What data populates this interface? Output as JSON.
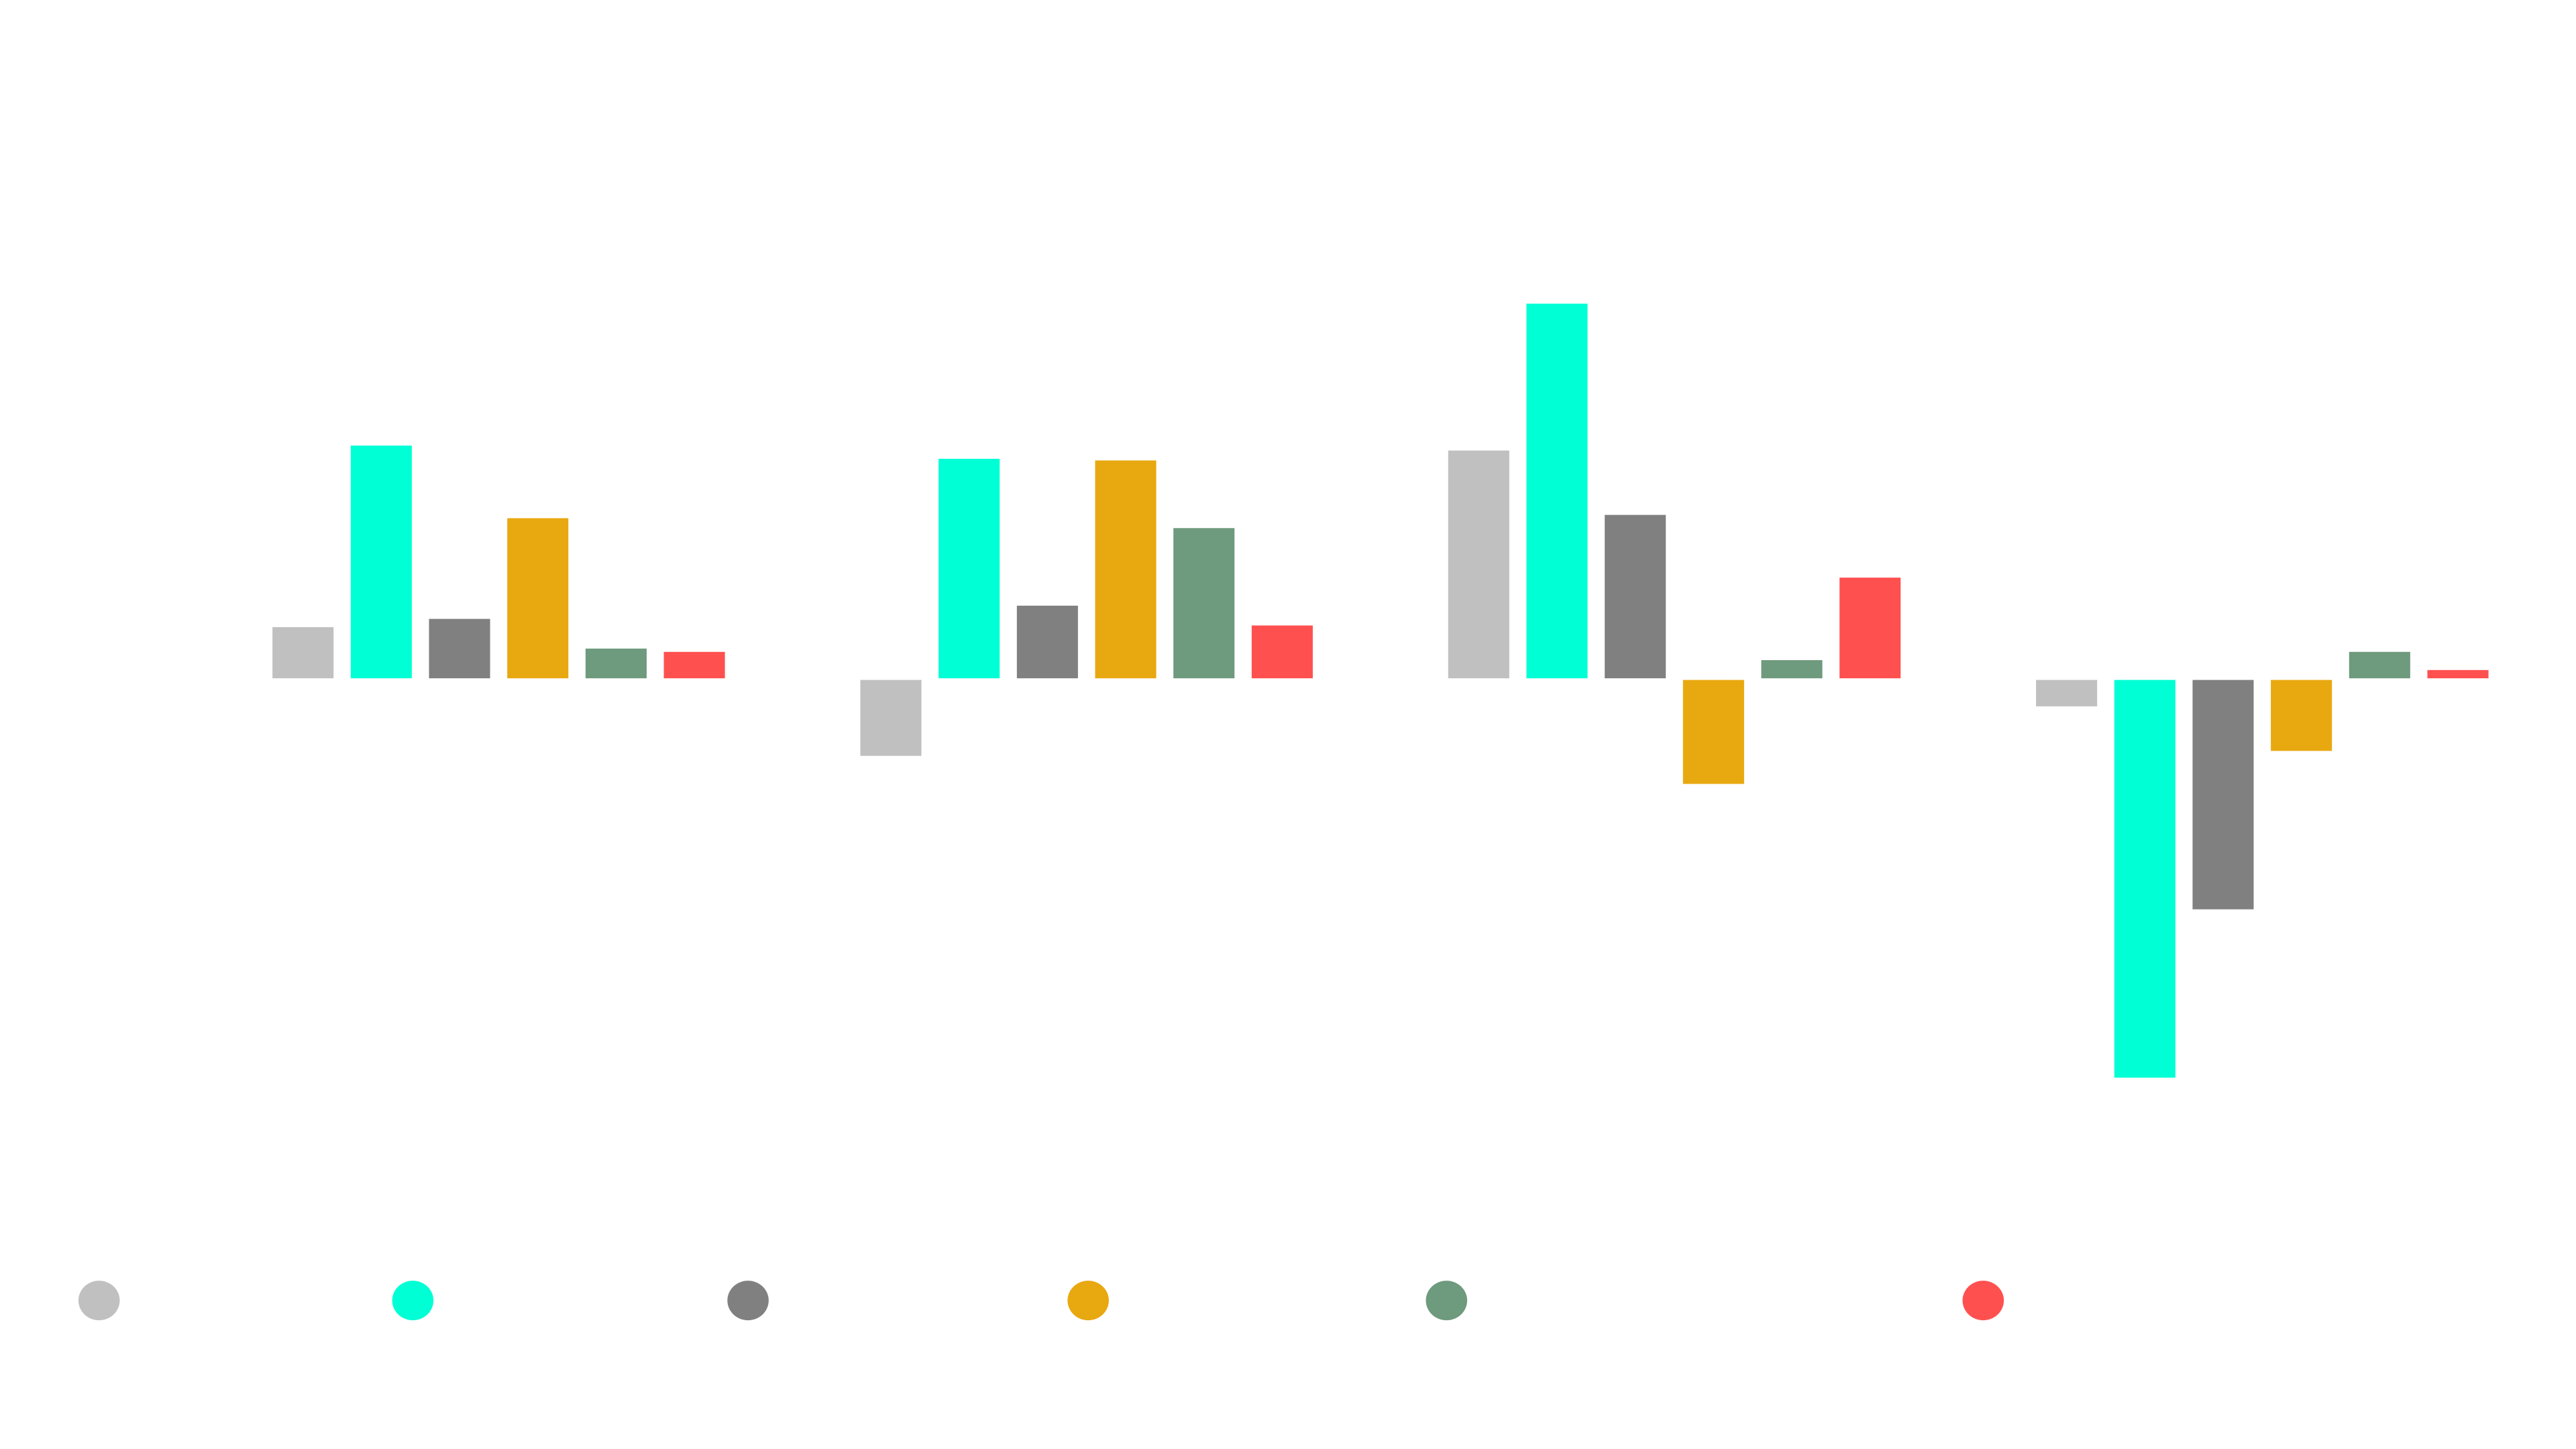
{
  "chart_data": {
    "type": "bar",
    "title": "",
    "xlabel": "",
    "ylabel": "",
    "categories": [
      "",
      "",
      "",
      ""
    ],
    "ylim": [
      -26,
      26
    ],
    "grid": false,
    "legend": "bottom",
    "series": [
      {
        "name": "",
        "color": "#c0c0c0",
        "values": [
          3.1,
          -4.6,
          13.8,
          -1.6
        ]
      },
      {
        "name": "",
        "color": "#00ffd5",
        "values": [
          14.1,
          13.3,
          22.7,
          -24.1
        ]
      },
      {
        "name": "",
        "color": "#808080",
        "values": [
          3.6,
          4.4,
          9.9,
          -13.9
        ]
      },
      {
        "name": "",
        "color": "#e8a80f",
        "values": [
          9.7,
          13.2,
          -6.3,
          -4.3
        ]
      },
      {
        "name": "",
        "color": "#6e9a7d",
        "values": [
          1.8,
          9.1,
          1.1,
          1.6
        ]
      },
      {
        "name": "",
        "color": "#ff5050",
        "values": [
          1.6,
          3.2,
          6.1,
          0.5
        ]
      }
    ]
  }
}
